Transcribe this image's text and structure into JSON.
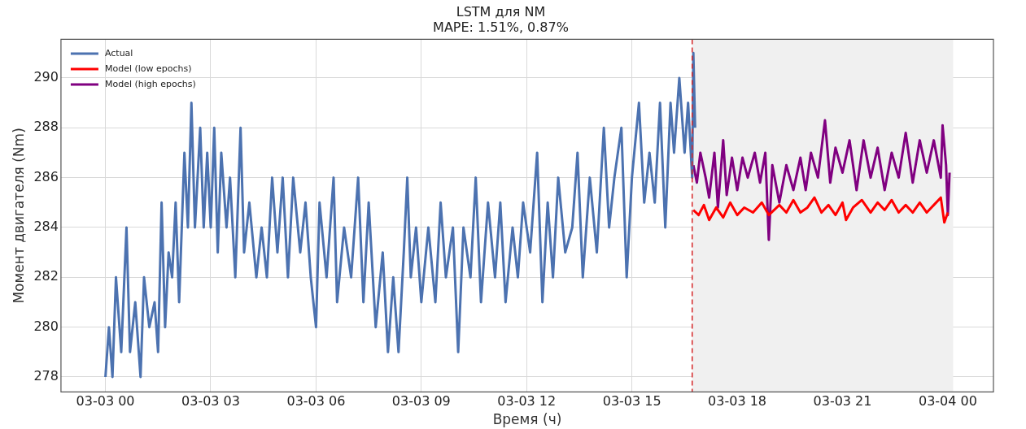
{
  "chart_data": {
    "type": "line",
    "title": "LSTM для NM",
    "subtitle": "MAPE: 1.51%, 0.87%",
    "xlabel": "Время (ч)",
    "ylabel": "Момент двигателя (Nm)",
    "xlim": [
      "--03-02T22:44",
      "--03-04T01:18"
    ],
    "xticks": [
      {
        "value": "--03-03T00:00",
        "label": "03-03 00"
      },
      {
        "value": "--03-03T03:00",
        "label": "03-03 03"
      },
      {
        "value": "--03-03T06:00",
        "label": "03-03 06"
      },
      {
        "value": "--03-03T09:00",
        "label": "03-03 09"
      },
      {
        "value": "--03-03T12:00",
        "label": "03-03 12"
      },
      {
        "value": "--03-03T15:00",
        "label": "03-03 15"
      },
      {
        "value": "--03-03T18:00",
        "label": "03-03 18"
      },
      {
        "value": "--03-03T21:00",
        "label": "03-03 21"
      },
      {
        "value": "--03-04T00:00",
        "label": "03-04 00"
      }
    ],
    "ylim": [
      277.4,
      291.55
    ],
    "yticks": [
      278,
      280,
      282,
      284,
      286,
      288,
      290
    ],
    "grid": true,
    "legend": "top left",
    "ref_lines": [
      {
        "axis": "x",
        "value": "--03-03T16:43",
        "color": "#d62728",
        "line_style": "dashed"
      }
    ],
    "bands": [
      {
        "axis": "x",
        "from": "--03-03T16:43",
        "to": "--03-04T00:09",
        "color": "#f0f0f0"
      }
    ],
    "series": [
      {
        "name": "Actual",
        "color": "#4c72b0",
        "x": [
          "--03-03T00:00",
          "--03-03T00:06",
          "--03-03T00:12",
          "--03-03T00:18",
          "--03-03T00:27",
          "--03-03T00:36",
          "--03-03T00:42",
          "--03-03T00:51",
          "--03-03T01:00",
          "--03-03T01:06",
          "--03-03T01:15",
          "--03-03T01:24",
          "--03-03T01:30",
          "--03-03T01:36",
          "--03-03T01:42",
          "--03-03T01:48",
          "--03-03T01:54",
          "--03-03T02:00",
          "--03-03T02:06",
          "--03-03T02:15",
          "--03-03T02:21",
          "--03-03T02:27",
          "--03-03T02:33",
          "--03-03T02:42",
          "--03-03T02:48",
          "--03-03T02:54",
          "--03-03T03:00",
          "--03-03T03:06",
          "--03-03T03:12",
          "--03-03T03:18",
          "--03-03T03:27",
          "--03-03T03:33",
          "--03-03T03:42",
          "--03-03T03:51",
          "--03-03T03:57",
          "--03-03T04:06",
          "--03-03T04:18",
          "--03-03T04:27",
          "--03-03T04:36",
          "--03-03T04:45",
          "--03-03T04:54",
          "--03-03T05:03",
          "--03-03T05:12",
          "--03-03T05:21",
          "--03-03T05:33",
          "--03-03T05:42",
          "--03-03T05:51",
          "--03-03T06:00",
          "--03-03T06:06",
          "--03-03T06:18",
          "--03-03T06:30",
          "--03-03T06:36",
          "--03-03T06:48",
          "--03-03T07:00",
          "--03-03T07:12",
          "--03-03T07:21",
          "--03-03T07:30",
          "--03-03T07:42",
          "--03-03T07:54",
          "--03-03T08:03",
          "--03-03T08:12",
          "--03-03T08:21",
          "--03-03T08:30",
          "--03-03T08:36",
          "--03-03T08:42",
          "--03-03T08:51",
          "--03-03T09:00",
          "--03-03T09:12",
          "--03-03T09:24",
          "--03-03T09:33",
          "--03-03T09:42",
          "--03-03T09:54",
          "--03-03T10:03",
          "--03-03T10:12",
          "--03-03T10:24",
          "--03-03T10:33",
          "--03-03T10:42",
          "--03-03T10:54",
          "--03-03T11:06",
          "--03-03T11:15",
          "--03-03T11:24",
          "--03-03T11:36",
          "--03-03T11:45",
          "--03-03T11:54",
          "--03-03T12:06",
          "--03-03T12:18",
          "--03-03T12:27",
          "--03-03T12:36",
          "--03-03T12:45",
          "--03-03T12:54",
          "--03-03T13:06",
          "--03-03T13:18",
          "--03-03T13:27",
          "--03-03T13:36",
          "--03-03T13:48",
          "--03-03T14:00",
          "--03-03T14:12",
          "--03-03T14:21",
          "--03-03T14:30",
          "--03-03T14:42",
          "--03-03T14:51",
          "--03-03T15:00",
          "--03-03T15:12",
          "--03-03T15:21",
          "--03-03T15:30",
          "--03-03T15:39",
          "--03-03T15:48",
          "--03-03T15:57",
          "--03-03T16:06",
          "--03-03T16:12",
          "--03-03T16:21",
          "--03-03T16:30",
          "--03-03T16:36",
          "--03-03T16:43",
          "--03-03T16:45",
          "--03-03T16:48"
        ],
        "values": [
          278,
          280,
          278,
          282,
          279,
          284,
          279,
          281,
          278,
          282,
          280,
          281,
          279,
          285,
          280,
          283,
          282,
          285,
          281,
          287,
          284,
          289,
          284,
          288,
          284,
          287,
          284,
          288,
          283,
          287,
          284,
          286,
          282,
          288,
          283,
          285,
          282,
          284,
          282,
          286,
          283,
          286,
          282,
          286,
          283,
          285,
          282,
          280,
          285,
          282,
          286,
          281,
          284,
          282,
          286,
          281,
          285,
          280,
          283,
          279,
          282,
          279,
          283,
          286,
          282,
          284,
          281,
          284,
          281,
          285,
          282,
          284,
          279,
          284,
          282,
          286,
          281,
          285,
          282,
          285,
          281,
          284,
          282,
          285,
          283,
          287,
          281,
          285,
          282,
          286,
          283,
          284,
          287,
          282,
          286,
          283,
          288,
          284,
          286,
          288,
          282,
          286,
          289,
          285,
          287,
          285,
          289,
          284,
          289,
          287,
          290,
          287,
          289,
          286,
          291,
          288
        ]
      },
      {
        "name": "Model (low epochs)",
        "color": "#ff0000",
        "x": [
          "--03-03T16:45",
          "--03-03T16:54",
          "--03-03T17:03",
          "--03-03T17:12",
          "--03-03T17:24",
          "--03-03T17:36",
          "--03-03T17:48",
          "--03-03T18:00",
          "--03-03T18:12",
          "--03-03T18:27",
          "--03-03T18:42",
          "--03-03T18:54",
          "--03-03T19:12",
          "--03-03T19:24",
          "--03-03T19:36",
          "--03-03T19:48",
          "--03-03T20:00",
          "--03-03T20:12",
          "--03-03T20:24",
          "--03-03T20:36",
          "--03-03T20:48",
          "--03-03T21:00",
          "--03-03T21:06",
          "--03-03T21:18",
          "--03-03T21:33",
          "--03-03T21:48",
          "--03-03T22:00",
          "--03-03T22:12",
          "--03-03T22:24",
          "--03-03T22:36",
          "--03-03T22:48",
          "--03-03T23:00",
          "--03-03T23:12",
          "--03-03T23:24",
          "--03-03T23:36",
          "--03-03T23:48",
          "--03-03T23:54",
          "--03-04T00:00"
        ],
        "values": [
          284.7,
          284.5,
          284.9,
          284.3,
          284.8,
          284.4,
          285.0,
          284.5,
          284.8,
          284.6,
          285.0,
          284.5,
          284.9,
          284.6,
          285.1,
          284.6,
          284.8,
          285.2,
          284.6,
          284.9,
          284.5,
          285.0,
          284.3,
          284.8,
          285.1,
          284.6,
          285.0,
          284.7,
          285.1,
          284.6,
          284.9,
          284.6,
          285.0,
          284.6,
          284.9,
          285.2,
          284.2,
          284.6
        ]
      },
      {
        "name": "Model (high epochs)",
        "color": "#800080",
        "x": [
          "--03-03T16:45",
          "--03-03T16:51",
          "--03-03T16:57",
          "--03-03T17:06",
          "--03-03T17:12",
          "--03-03T17:21",
          "--03-03T17:27",
          "--03-03T17:36",
          "--03-03T17:42",
          "--03-03T17:51",
          "--03-03T18:00",
          "--03-03T18:09",
          "--03-03T18:18",
          "--03-03T18:30",
          "--03-03T18:39",
          "--03-03T18:48",
          "--03-03T18:54",
          "--03-03T19:00",
          "--03-03T19:12",
          "--03-03T19:24",
          "--03-03T19:36",
          "--03-03T19:48",
          "--03-03T19:57",
          "--03-03T20:06",
          "--03-03T20:18",
          "--03-03T20:30",
          "--03-03T20:39",
          "--03-03T20:48",
          "--03-03T21:00",
          "--03-03T21:12",
          "--03-03T21:24",
          "--03-03T21:36",
          "--03-03T21:48",
          "--03-03T22:00",
          "--03-03T22:12",
          "--03-03T22:24",
          "--03-03T22:36",
          "--03-03T22:48",
          "--03-03T23:00",
          "--03-03T23:12",
          "--03-03T23:24",
          "--03-03T23:36",
          "--03-03T23:48",
          "--03-03T23:51",
          "--03-03T23:57",
          "--03-04T00:00",
          "--03-04T00:03"
        ],
        "values": [
          286.5,
          285.8,
          287.0,
          286.0,
          285.2,
          287.0,
          284.8,
          287.5,
          285.3,
          286.8,
          285.5,
          286.8,
          286.0,
          287.0,
          285.8,
          287.0,
          283.5,
          286.5,
          285.0,
          286.5,
          285.5,
          286.8,
          285.5,
          287.0,
          286.0,
          288.3,
          285.8,
          287.2,
          286.2,
          287.5,
          285.5,
          287.5,
          286.0,
          287.2,
          285.5,
          287.0,
          286.0,
          287.8,
          285.8,
          287.5,
          286.2,
          287.5,
          286.0,
          288.1,
          286.5,
          284.5,
          286.2
        ]
      }
    ]
  }
}
